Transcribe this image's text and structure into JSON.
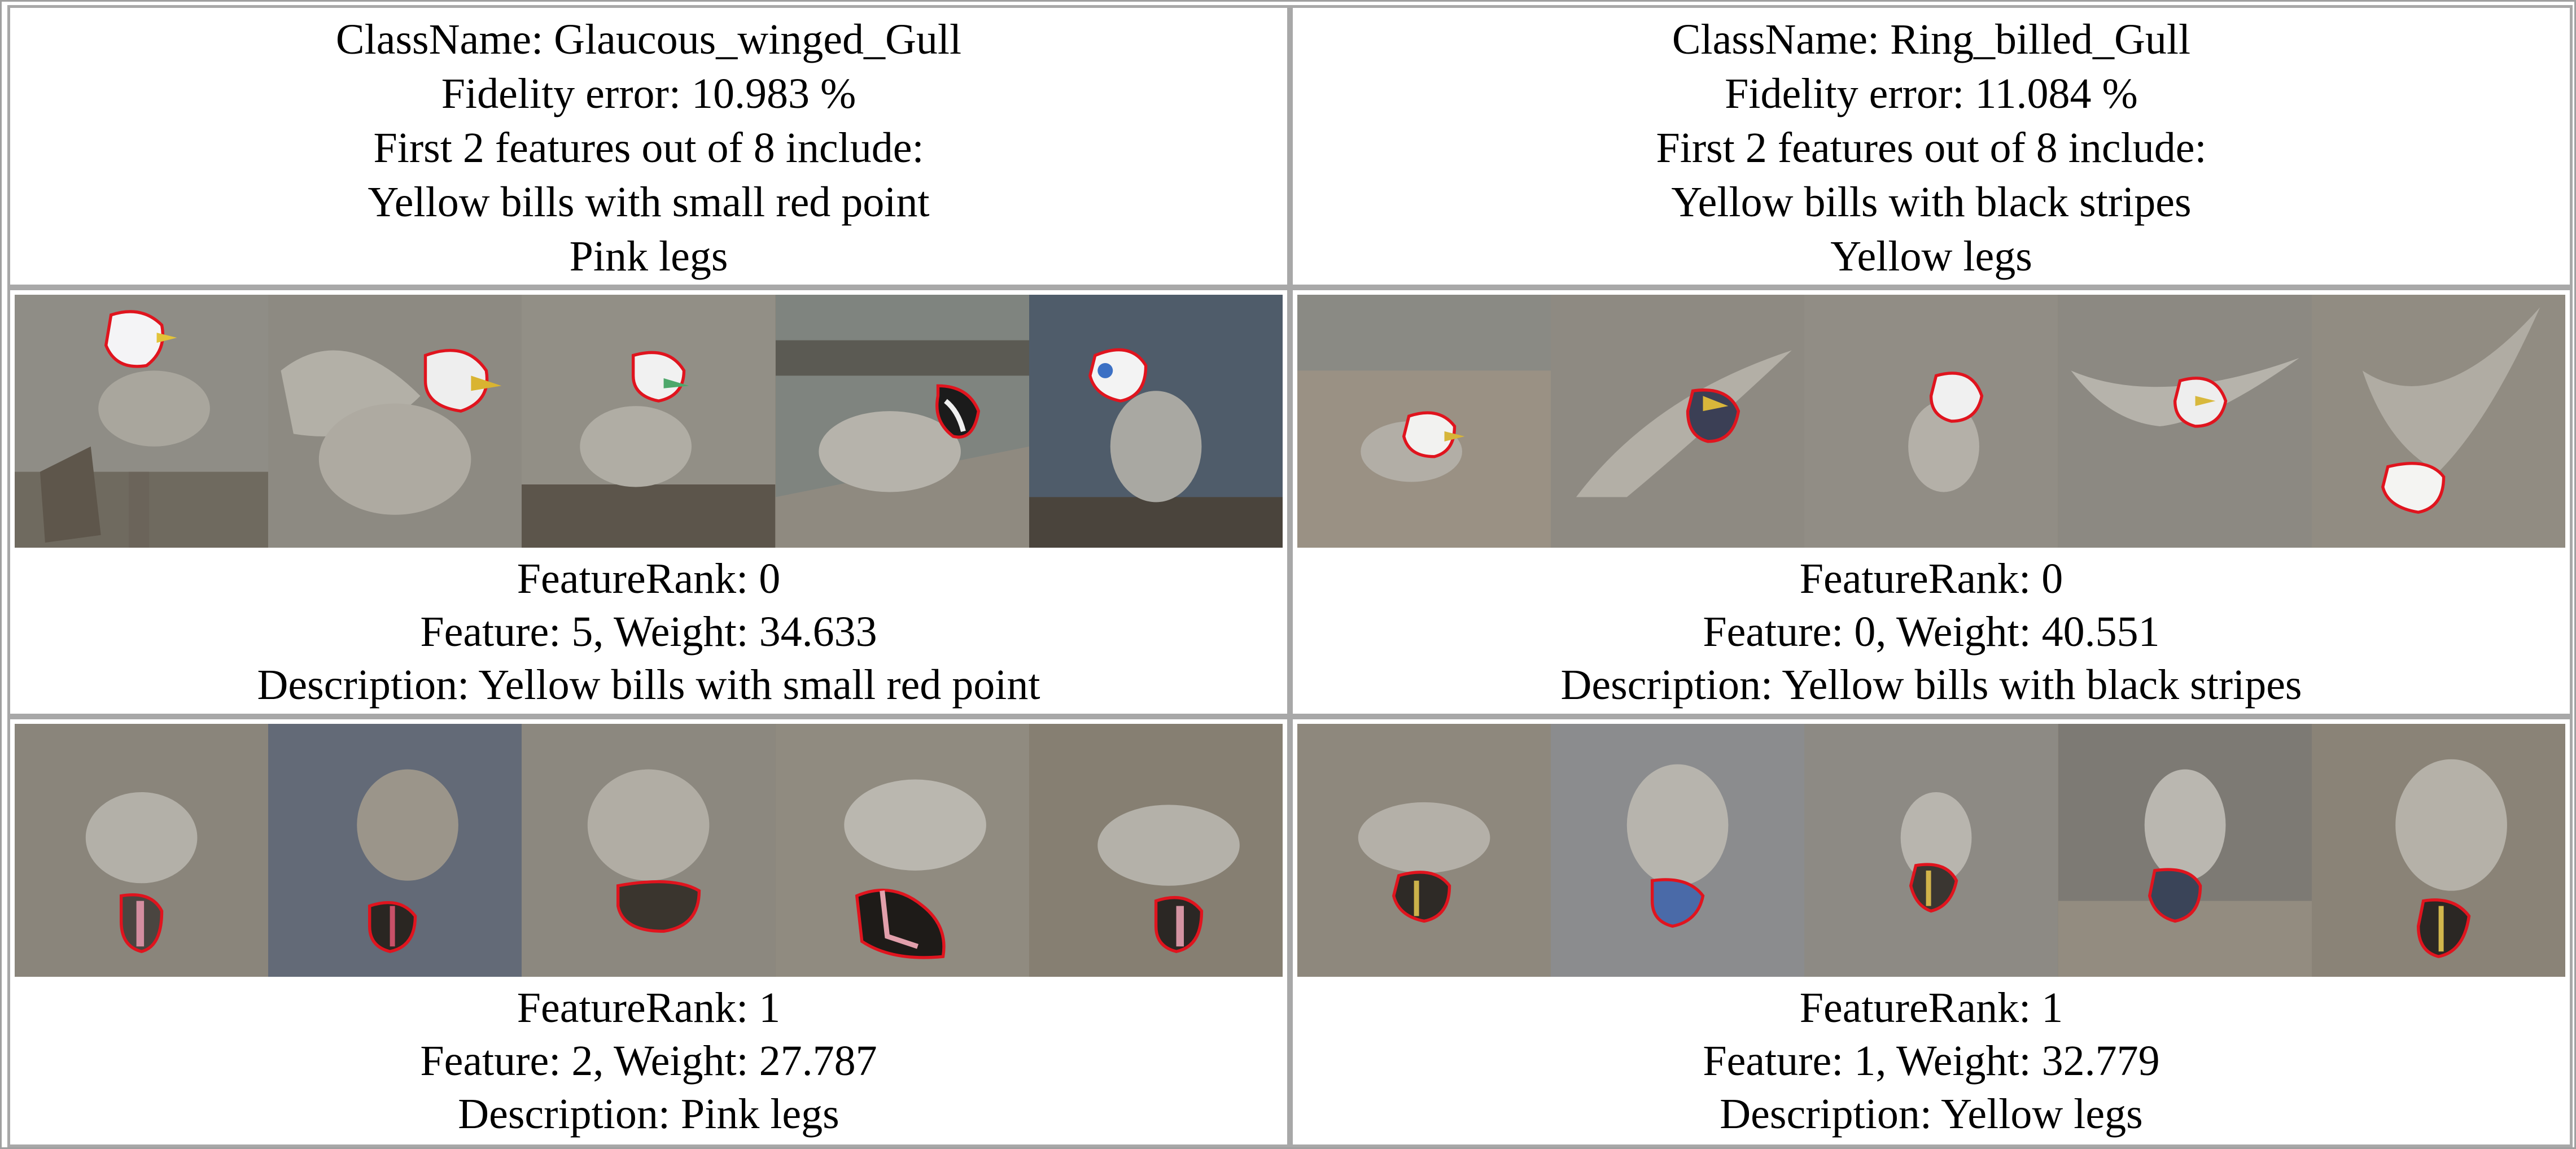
{
  "panels": [
    {
      "class_name": "ClassName: Glaucous_winged_Gull",
      "fidelity": "Fidelity error: 10.983 %",
      "features_intro": "First 2 features out of 8 include:",
      "feature_list": [
        "Yellow bills with small red point",
        "Pink legs"
      ],
      "features": [
        {
          "rank": "FeatureRank: 0",
          "feature_weight": "Feature: 5, Weight: 34.633",
          "description": "Description: Yellow bills with small red point",
          "thumbnails": [
            "gull-head-photo",
            "gull-head-photo",
            "gull-head-photo",
            "gull-head-photo",
            "gull-head-photo"
          ]
        },
        {
          "rank": "FeatureRank: 1",
          "feature_weight": "Feature: 2, Weight: 27.787",
          "description": "Description: Pink legs",
          "thumbnails": [
            "gull-legs-photo",
            "gull-legs-photo",
            "gull-legs-photo",
            "gull-legs-photo",
            "gull-legs-photo"
          ]
        }
      ]
    },
    {
      "class_name": "ClassName: Ring_billed_Gull",
      "fidelity": "Fidelity error: 11.084 %",
      "features_intro": "First 2 features out of 8 include:",
      "feature_list": [
        "Yellow bills with black stripes",
        "Yellow legs"
      ],
      "features": [
        {
          "rank": "FeatureRank: 0",
          "feature_weight": "Feature: 0, Weight: 40.551",
          "description": "Description: Yellow bills with black stripes",
          "thumbnails": [
            "gull-head-photo",
            "gull-head-photo",
            "gull-head-photo",
            "gull-head-photo",
            "gull-head-photo"
          ]
        },
        {
          "rank": "FeatureRank: 1",
          "feature_weight": "Feature: 1, Weight: 32.779",
          "description": "Description: Yellow legs",
          "thumbnails": [
            "gull-legs-photo",
            "gull-legs-photo",
            "gull-legs-photo",
            "gull-legs-photo",
            "gull-legs-photo"
          ]
        }
      ]
    }
  ],
  "colors": {
    "border": "#a8a8a8",
    "region_outline": "#e0141e",
    "photo_dim": "#8c877c"
  }
}
